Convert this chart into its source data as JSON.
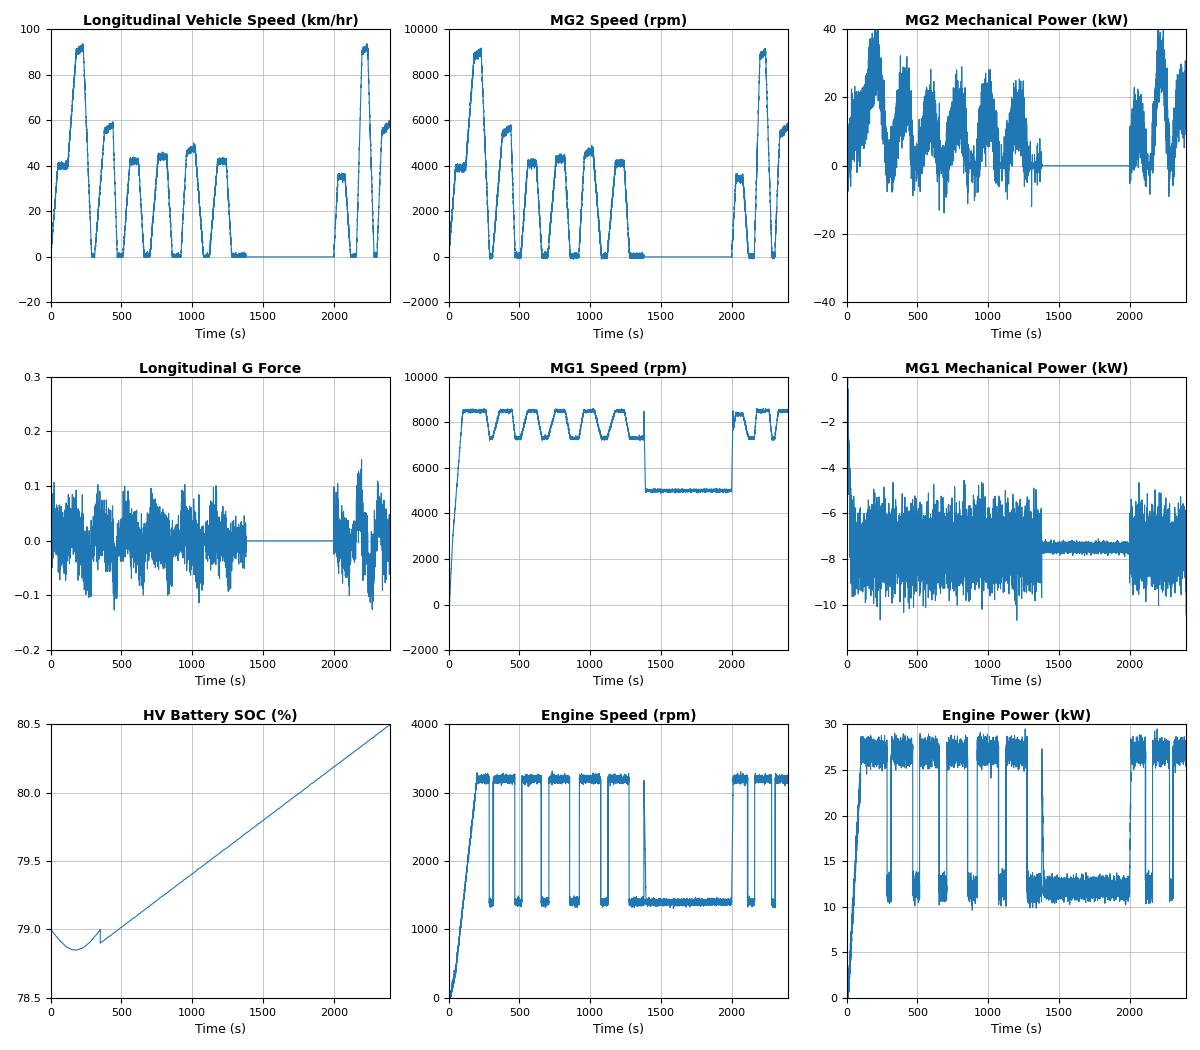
{
  "figure_size": [
    12.0,
    10.5
  ],
  "dpi": 100,
  "line_color": "#1f77b4",
  "line_width": 0.8,
  "background_color": "#ffffff",
  "grid_color": "#b0b0b0",
  "title_fontsize": 10,
  "label_fontsize": 9,
  "tick_fontsize": 8,
  "subplots": [
    {
      "title": "Longitudinal Vehicle Speed (km/hr)",
      "xlabel": "Time (s)",
      "xlim": [
        0,
        2400
      ],
      "ylim": [
        -20,
        100
      ],
      "yticks": [
        -20,
        0,
        20,
        40,
        60,
        80,
        100
      ],
      "xticks": [
        0,
        500,
        1000,
        1500,
        2000
      ]
    },
    {
      "title": "MG2 Speed (rpm)",
      "xlabel": "Time (s)",
      "xlim": [
        0,
        2400
      ],
      "ylim": [
        -2000,
        10000
      ],
      "yticks": [
        -2000,
        0,
        2000,
        4000,
        6000,
        8000,
        10000
      ],
      "xticks": [
        0,
        500,
        1000,
        1500,
        2000
      ]
    },
    {
      "title": "MG2 Mechanical Power (kW)",
      "xlabel": "Time (s)",
      "xlim": [
        0,
        2400
      ],
      "ylim": [
        -40,
        40
      ],
      "yticks": [
        -40,
        -20,
        0,
        20,
        40
      ],
      "xticks": [
        0,
        500,
        1000,
        1500,
        2000
      ]
    },
    {
      "title": "Longitudinal G Force",
      "xlabel": "Time (s)",
      "xlim": [
        0,
        2400
      ],
      "ylim": [
        -0.2,
        0.3
      ],
      "yticks": [
        -0.2,
        -0.1,
        0.0,
        0.1,
        0.2,
        0.3
      ],
      "xticks": [
        0,
        500,
        1000,
        1500,
        2000
      ]
    },
    {
      "title": "MG1 Speed (rpm)",
      "xlabel": "Time (s)",
      "xlim": [
        0,
        2400
      ],
      "ylim": [
        -2000,
        10000
      ],
      "yticks": [
        -2000,
        0,
        2000,
        4000,
        6000,
        8000,
        10000
      ],
      "xticks": [
        0,
        500,
        1000,
        1500,
        2000
      ]
    },
    {
      "title": "MG1 Mechanical Power (kW)",
      "xlabel": "Time (s)",
      "xlim": [
        0,
        2400
      ],
      "ylim": [
        -12,
        0
      ],
      "yticks": [
        -10,
        -8,
        -6,
        -4,
        -2,
        0
      ],
      "xticks": [
        0,
        500,
        1000,
        1500,
        2000
      ]
    },
    {
      "title": "HV Battery SOC (%)",
      "xlabel": "Time (s)",
      "xlim": [
        0,
        2400
      ],
      "ylim": [
        78.5,
        80.5
      ],
      "yticks": [
        78.5,
        79.0,
        79.5,
        80.0,
        80.5
      ],
      "xticks": [
        0,
        500,
        1000,
        1500,
        2000
      ]
    },
    {
      "title": "Engine Speed (rpm)",
      "xlabel": "Time (s)",
      "xlim": [
        0,
        2400
      ],
      "ylim": [
        0,
        4000
      ],
      "yticks": [
        0,
        1000,
        2000,
        3000,
        4000
      ],
      "xticks": [
        0,
        500,
        1000,
        1500,
        2000
      ]
    },
    {
      "title": "Engine Power (kW)",
      "xlabel": "Time (s)",
      "xlim": [
        0,
        2400
      ],
      "ylim": [
        0,
        30
      ],
      "yticks": [
        0,
        5,
        10,
        15,
        20,
        25,
        30
      ],
      "xticks": [
        0,
        500,
        1000,
        1500,
        2000
      ]
    }
  ]
}
